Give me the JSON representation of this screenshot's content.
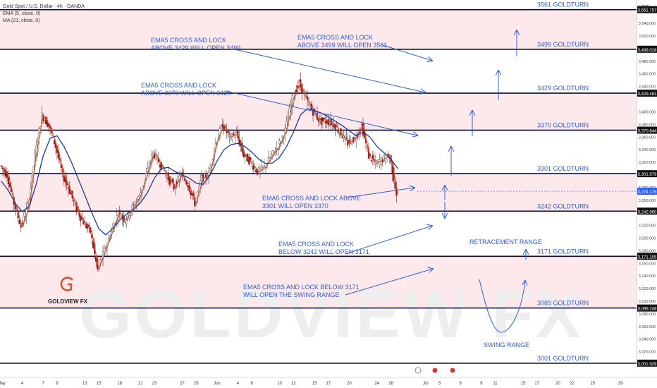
{
  "header": {
    "title": "Gold Spot / U.S. Dollar · 4h · OANDA",
    "ema_legend": "EMA (5, close, 0)",
    "ma_legend": "MA (21, close, 0)",
    "currency": "USD"
  },
  "colors": {
    "band_fill": "#fde8ec",
    "level_line": "#0a0a2a",
    "annotation_blue": "#2f5fd6",
    "price_red": "#d2502a",
    "ma_blue": "#1f3a93",
    "candle_up": "#4a4a4a",
    "candle_down": "#8a1a1a",
    "last_price_bg": "#2962ff",
    "watermark": "#eeeeee"
  },
  "brand": {
    "logo_text": "GOLDVIEW FX",
    "watermark_text": "GOLDVIEW FX"
  },
  "chart_data": {
    "type": "line",
    "title": "Gold Spot / U.S. Dollar · 4h · OANDA",
    "xlabel": "",
    "ylabel": "USD",
    "ylim": [
      2995,
      3577
    ],
    "grid": false,
    "x_ticks": [
      {
        "label": "May",
        "x": 0
      },
      {
        "label": "4",
        "x": 3
      },
      {
        "label": "7",
        "x": 6
      },
      {
        "label": "9",
        "x": 8
      },
      {
        "label": "13",
        "x": 12
      },
      {
        "label": "15",
        "x": 14
      },
      {
        "label": "18",
        "x": 17
      },
      {
        "label": "21",
        "x": 20
      },
      {
        "label": "23",
        "x": 22
      },
      {
        "label": "27",
        "x": 26
      },
      {
        "label": "29",
        "x": 28
      },
      {
        "label": "Jun",
        "x": 31
      },
      {
        "label": "4",
        "x": 34
      },
      {
        "label": "6",
        "x": 36
      },
      {
        "label": "10",
        "x": 40
      },
      {
        "label": "12",
        "x": 42
      },
      {
        "label": "15",
        "x": 45
      },
      {
        "label": "17",
        "x": 47
      },
      {
        "label": "20",
        "x": 50
      },
      {
        "label": "24",
        "x": 54
      },
      {
        "label": "26",
        "x": 56
      },
      {
        "label": "Jul",
        "x": 61
      },
      {
        "label": "3",
        "x": 63
      },
      {
        "label": "6",
        "x": 66
      },
      {
        "label": "9",
        "x": 69
      },
      {
        "label": "11",
        "x": 71
      },
      {
        "label": "15",
        "x": 75
      },
      {
        "label": "17",
        "x": 77
      },
      {
        "label": "20",
        "x": 80
      },
      {
        "label": "22",
        "x": 82
      },
      {
        "label": "25",
        "x": 85
      },
      {
        "label": "29",
        "x": 89
      }
    ],
    "y_ticks": [
      3540,
      3520,
      3480,
      3460,
      3440,
      3400,
      3380,
      3360,
      3340,
      3320,
      3280,
      3260,
      3220,
      3200,
      3180,
      3160,
      3140,
      3120,
      3100,
      3080,
      3060,
      3040,
      3020
    ],
    "levels": [
      {
        "name": "3561 GOLDTURN",
        "value": 3561.757,
        "tag": "3,561.757"
      },
      {
        "name": "3499 GOLDTURN",
        "value": 3499.028,
        "tag": "3,499.028"
      },
      {
        "name": "3429 GOLDTURN",
        "value": 3429.481,
        "tag": "3,429.481"
      },
      {
        "name": "3370 GOLDTURN",
        "value": 3370.844,
        "tag": "3,370.844"
      },
      {
        "name": "3301 GOLDTURN",
        "value": 3301.979,
        "tag": "3,301.979"
      },
      {
        "name": "3242 GOLDTURN",
        "value": 3242.66,
        "tag": "3,242.660"
      },
      {
        "name": "3171 GOLDTURN",
        "value": 3171.105,
        "tag": "3,171.105"
      },
      {
        "name": "3089 GOLDTURN",
        "value": 3089.248,
        "tag": "3,089.248"
      },
      {
        "name": "3001 GOLDTURN",
        "value": 3001.929,
        "tag": "3,001.929"
      }
    ],
    "bands": [
      {
        "from": 3499.028,
        "to": 3561.757
      },
      {
        "from": 3370.844,
        "to": 3429.481
      },
      {
        "from": 3242.66,
        "to": 3301.979
      },
      {
        "from": 3089.248,
        "to": 3171.105
      }
    ],
    "last_price": {
      "value": 3274.175,
      "tag": "3,274.175"
    },
    "series": [
      {
        "name": "EMA (5, close, 0)",
        "x": [
          0,
          1,
          2,
          3,
          4,
          5,
          6,
          7,
          8,
          9,
          10,
          11,
          12,
          13,
          14,
          15,
          16,
          17,
          18,
          19,
          20,
          21,
          22,
          23,
          24,
          25,
          26,
          27,
          28,
          29,
          30,
          31,
          32,
          33,
          34,
          35,
          36,
          37,
          38,
          39,
          40,
          41,
          42,
          43,
          44,
          45,
          46,
          47,
          48,
          49,
          50,
          51,
          52,
          53,
          54,
          55,
          56,
          57
        ],
        "values": [
          3315,
          3300,
          3255,
          3218,
          3250,
          3330,
          3395,
          3378,
          3345,
          3300,
          3275,
          3245,
          3225,
          3210,
          3150,
          3180,
          3210,
          3240,
          3228,
          3248,
          3265,
          3300,
          3335,
          3318,
          3298,
          3280,
          3300,
          3285,
          3255,
          3295,
          3300,
          3350,
          3380,
          3360,
          3365,
          3332,
          3320,
          3305,
          3312,
          3330,
          3345,
          3370,
          3420,
          3445,
          3420,
          3400,
          3385,
          3385,
          3380,
          3365,
          3350,
          3358,
          3378,
          3330,
          3318,
          3325,
          3330,
          3270
        ]
      },
      {
        "name": "MA (21, close, 0)",
        "x": [
          0,
          1,
          2,
          3,
          4,
          5,
          6,
          7,
          8,
          9,
          10,
          11,
          12,
          13,
          14,
          15,
          16,
          17,
          18,
          19,
          20,
          21,
          22,
          23,
          24,
          25,
          26,
          27,
          28,
          29,
          30,
          31,
          32,
          33,
          34,
          35,
          36,
          37,
          38,
          39,
          40,
          41,
          42,
          43,
          44,
          45,
          46,
          47,
          48,
          49,
          50,
          51,
          52,
          53,
          54,
          55,
          56,
          57
        ],
        "values": [
          3290,
          3275,
          3255,
          3242,
          3250,
          3285,
          3330,
          3358,
          3362,
          3345,
          3322,
          3295,
          3268,
          3240,
          3215,
          3205,
          3215,
          3228,
          3238,
          3245,
          3256,
          3272,
          3295,
          3310,
          3312,
          3305,
          3300,
          3295,
          3287,
          3285,
          3300,
          3322,
          3340,
          3348,
          3350,
          3345,
          3336,
          3325,
          3318,
          3319,
          3328,
          3345,
          3368,
          3395,
          3405,
          3402,
          3398,
          3392,
          3385,
          3378,
          3370,
          3362,
          3368,
          3360,
          3345,
          3335,
          3325,
          3310
        ]
      }
    ],
    "annotations": [
      {
        "lines": [
          "EMA5 CROSS AND LOCK",
          "ABOVE 3429 WILL OPEN 3499"
        ]
      },
      {
        "lines": [
          "EMA5 CROSS AND LOCK",
          "ABOVE 3499 WILL OPEN 3561"
        ]
      },
      {
        "lines": [
          "EMA5 CROSS AND LOCK",
          "ABOVE 3370 WILL OPEN 3429"
        ]
      },
      {
        "lines": [
          "EMA5 CROSS AND LOCK ABOVE",
          "3301 WILL OPEN 3370"
        ]
      },
      {
        "lines": [
          "EMA5 CROSS AND LOCK",
          "BELOW 3242 WILL OPEN 3171"
        ]
      },
      {
        "lines": [
          "EMA5 CROSS AND LOCK BELOW 3171",
          "WILL OPEN THE SWING RANGE"
        ]
      },
      {
        "lines": [
          "RETRACEMENT RANGE"
        ]
      },
      {
        "lines": [
          "SWING RANGE"
        ]
      }
    ]
  }
}
